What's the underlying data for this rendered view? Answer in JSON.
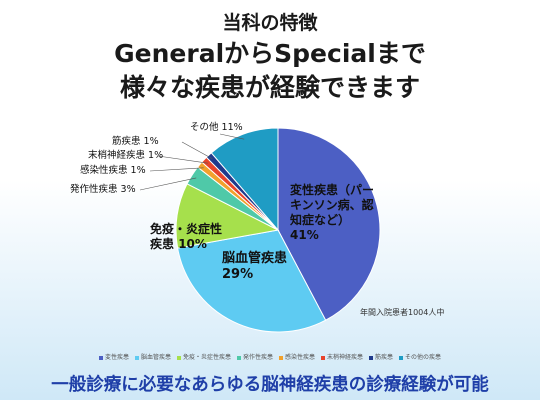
{
  "title_lines": [
    "当科の特徴",
    "GeneralからSpecialまで",
    "様々な疾患が経験できます"
  ],
  "chart_data": {
    "type": "pie",
    "categories": [
      "変性疾患",
      "脳血管疾患",
      "免疫・炎症性疾患",
      "発作性疾患",
      "感染性疾患",
      "末梢神経疾患",
      "筋疾患",
      "その他の疾患"
    ],
    "data_labels": [
      "変性疾患（パーキンソン病、認知症など）",
      "脳血管疾患",
      "免疫・炎症性疾患",
      "発作性疾患",
      "感染性疾患",
      "末梢神経疾患",
      "筋疾患",
      "その他"
    ],
    "values": [
      41,
      29,
      10,
      3,
      1,
      1,
      1,
      11
    ],
    "value_labels": [
      "41%",
      "29%",
      "10%",
      "3%",
      "1%",
      "1%",
      "1%",
      "11%"
    ],
    "colors": [
      "#4c5fc4",
      "#5ecbf2",
      "#a6e04c",
      "#4fc9a8",
      "#f2a12c",
      "#e8442c",
      "#1f3a8c",
      "#1f9cc4"
    ],
    "note": "年間入院患者1004人中"
  },
  "footer": "一般診療に必要なあらゆる脳神経疾患の診療経験が可能"
}
